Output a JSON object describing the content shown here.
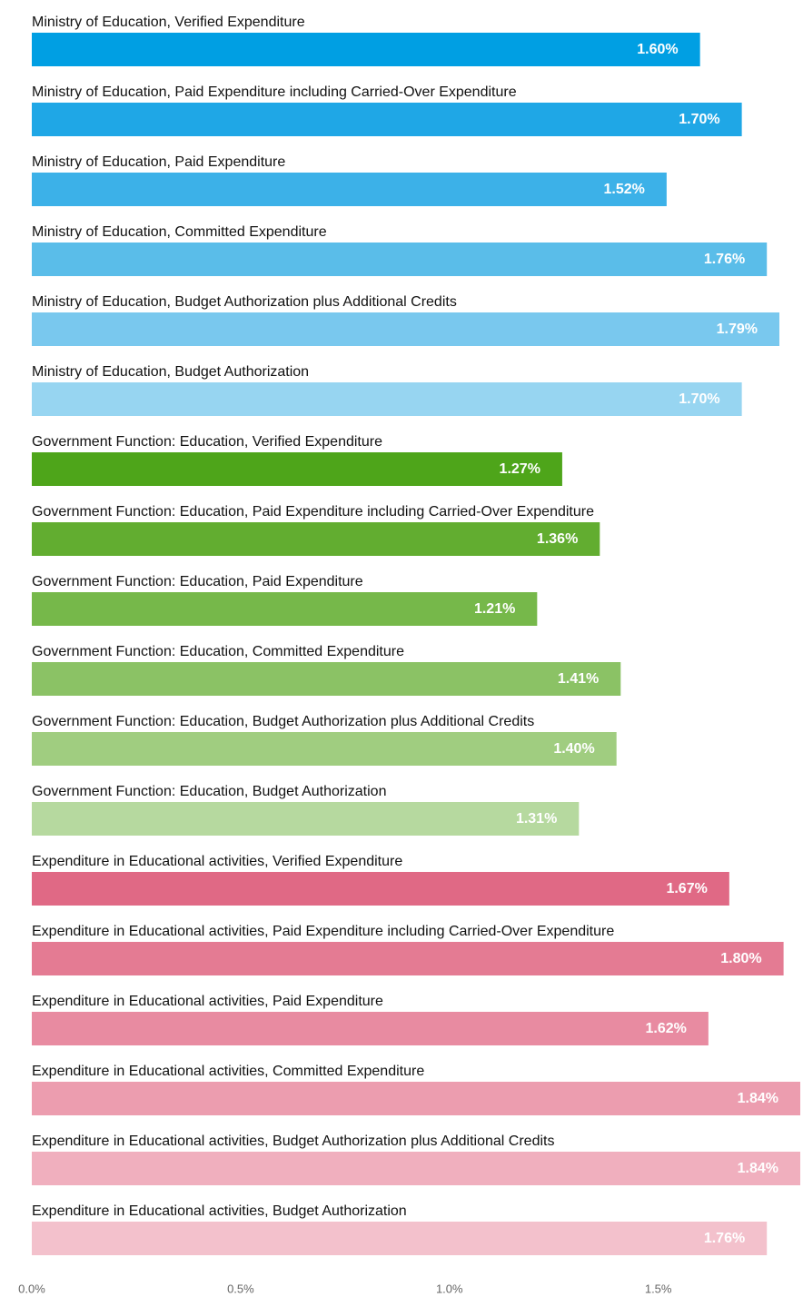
{
  "chart_data": {
    "type": "bar",
    "orientation": "horizontal",
    "categories": [
      "Ministry of Education, Verified Expenditure",
      "Ministry of Education, Paid Expenditure including Carried-Over Expenditure",
      "Ministry of Education, Paid Expenditure",
      "Ministry of Education, Committed Expenditure",
      "Ministry of Education, Budget Authorization plus Additional Credits",
      "Ministry of Education, Budget Authorization",
      "Government Function: Education, Verified Expenditure",
      "Government Function: Education, Paid Expenditure including Carried-Over Expenditure",
      "Government Function: Education, Paid Expenditure",
      "Government Function: Education, Committed Expenditure",
      "Government Function: Education, Budget Authorization plus Additional Credits",
      "Government Function: Education, Budget Authorization",
      "Expenditure in Educational activities, Verified Expenditure",
      "Expenditure in Educational activities, Paid Expenditure including Carried-Over Expenditure",
      "Expenditure in Educational activities, Paid Expenditure",
      "Expenditure in Educational activities, Committed Expenditure",
      "Expenditure in Educational activities, Budget Authorization plus Additional Credits",
      "Expenditure in Educational activities, Budget Authorization"
    ],
    "values": [
      1.6,
      1.7,
      1.52,
      1.76,
      1.79,
      1.7,
      1.27,
      1.36,
      1.21,
      1.41,
      1.4,
      1.31,
      1.67,
      1.8,
      1.62,
      1.84,
      1.84,
      1.76
    ],
    "value_labels": [
      "1.60%",
      "1.70%",
      "1.52%",
      "1.76%",
      "1.79%",
      "1.70%",
      "1.27%",
      "1.36%",
      "1.21%",
      "1.41%",
      "1.40%",
      "1.31%",
      "1.67%",
      "1.80%",
      "1.62%",
      "1.84%",
      "1.84%",
      "1.76%"
    ],
    "colors": [
      "#009fe3",
      "#1fa7e6",
      "#3cb1e8",
      "#5abde9",
      "#79c8ee",
      "#97d5f1",
      "#4ea51a",
      "#62ad30",
      "#76b84a",
      "#8bc265",
      "#a0cd80",
      "#b6d99f",
      "#e06985",
      "#e47b93",
      "#e88ba1",
      "#ec9daf",
      "#f0afbe",
      "#f3c1cc"
    ],
    "xlim": [
      0,
      1.84
    ],
    "xticks": [
      {
        "value": 0,
        "label": "0.0%"
      },
      {
        "value": 0.5,
        "label": "0.5%"
      },
      {
        "value": 1.0,
        "label": "1.0%"
      },
      {
        "value": 1.5,
        "label": "1.5%"
      }
    ]
  }
}
